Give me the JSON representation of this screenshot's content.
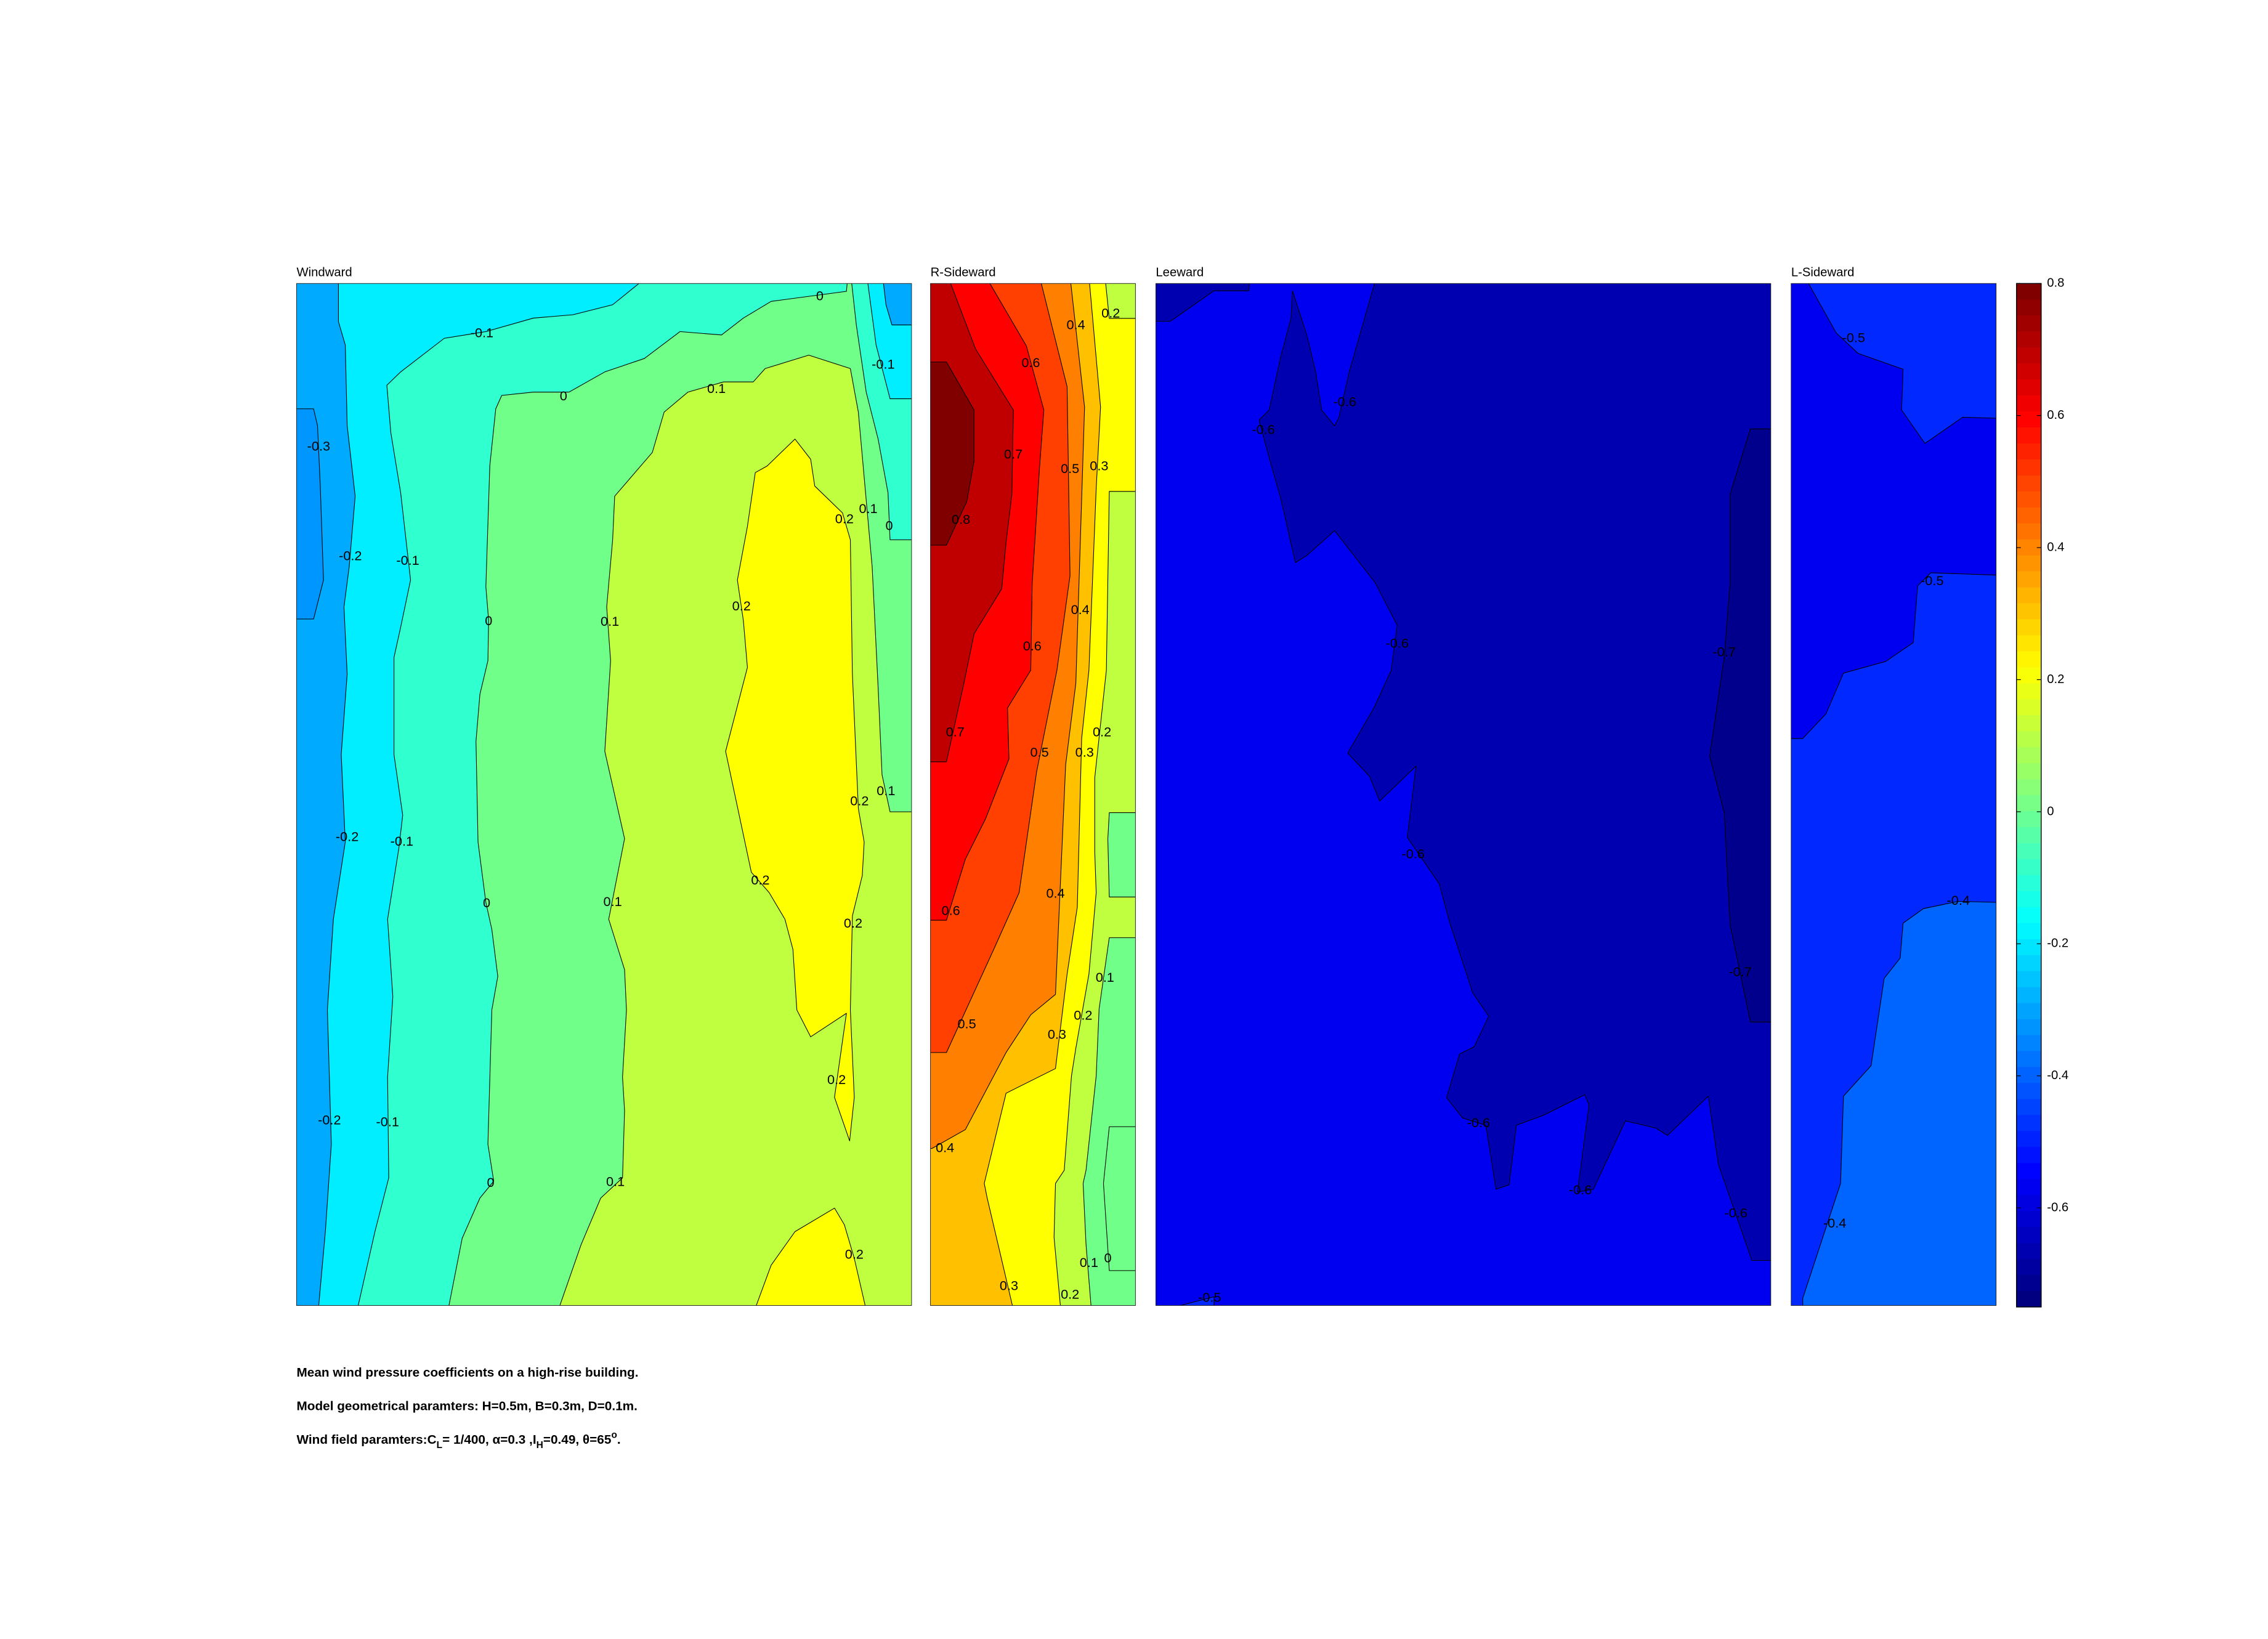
{
  "chart_data": {
    "type": "heatmap",
    "style": "filled-contour",
    "grid": false,
    "legend": "colorbar-right",
    "colormap": "jet",
    "color_range": [
      -0.75,
      0.8
    ],
    "colors": {
      "navy": "#00008c",
      "dark": "#0000b0",
      "blue": "#0000f0",
      "blue2": "#0028ff",
      "blue3": "#0064ff",
      "azure": "#0096ff",
      "sky": "#00aaff",
      "cyan": "#00eeff",
      "aqua": "#30ffd0",
      "green": "#70ff88",
      "lime": "#c0ff40",
      "yellow": "#ffff00",
      "amber": "#ffc000",
      "orange": "#ff8000",
      "redorange": "#ff4000",
      "red": "#ff0000",
      "darkred": "#c00000",
      "maroon": "#800000"
    },
    "panels": [
      {
        "title": "Windward",
        "value_range": [
          -0.35,
          0.25
        ],
        "contour_labels": [
          "-0.3",
          "-0.2",
          "-0.1",
          "-0.1",
          "0",
          "0.1",
          "0",
          "-0.1",
          "0.2",
          "0.1",
          "0",
          "0",
          "0.1",
          "0.2",
          "0.2",
          "0.1",
          "-0.2",
          "-0.1",
          "0",
          "0.1",
          "0.2",
          "0.2",
          "0.2",
          "-0.2",
          "-0.1",
          "0",
          "0.1",
          "0.2"
        ]
      },
      {
        "title": "R-Sideward",
        "value_range": [
          0.0,
          0.85
        ],
        "contour_labels": [
          "0.2",
          "0.4",
          "0.6",
          "0.7",
          "0.5",
          "0.3",
          "0.8",
          "0.4",
          "0.6",
          "0.7",
          "0.2",
          "0.5",
          "0.3",
          "0.6",
          "0.4",
          "0.1",
          "0.2",
          "0.3",
          "0.5",
          "0.4",
          "0.3",
          "0.1",
          "0",
          "0.2"
        ]
      },
      {
        "title": "Leeward",
        "value_range": [
          -0.75,
          -0.5
        ],
        "contour_labels": [
          "-0.6",
          "-0.6",
          "-0.6",
          "-0.6",
          "-0.6",
          "-0.6",
          "-0.6",
          "-0.7",
          "-0.7",
          "-0.5"
        ]
      },
      {
        "title": "L-Sideward",
        "value_range": [
          -0.6,
          -0.35
        ],
        "contour_labels": [
          "-0.5",
          "-0.5",
          "-0.4",
          "-0.4"
        ]
      }
    ],
    "colorbar": {
      "ticks": [
        0.8,
        0.6,
        0.4,
        0.2,
        0,
        -0.2,
        -0.4,
        -0.6
      ],
      "tick_labels": [
        "0.8",
        "0.6",
        "0.4",
        "0.2",
        "0",
        "-0.2",
        "-0.4",
        "-0.6"
      ]
    }
  },
  "caption": {
    "line1": "Mean wind pressure coefficients on a high-rise building.",
    "line2": "Model geometrical paramters: H=0.5m, B=0.3m, D=0.1m.",
    "line3": {
      "a": "Wind field paramters:C",
      "a_sub": "L",
      "b": "= 1/400, α=0.3 ,I",
      "b_sub": "H",
      "c": "=0.49, θ=65",
      "c_sup": "o",
      "d": "."
    }
  }
}
